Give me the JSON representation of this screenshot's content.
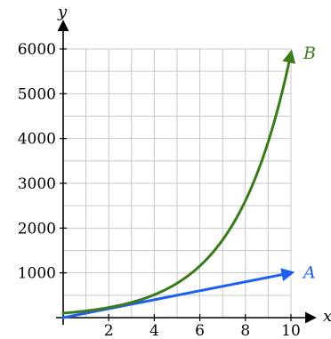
{
  "chart_data": {
    "type": "line",
    "xlabel": "x",
    "ylabel": "y",
    "xlim": [
      0,
      10
    ],
    "ylim": [
      0,
      6000
    ],
    "x_ticks": [
      2,
      4,
      6,
      8,
      10
    ],
    "y_ticks": [
      1000,
      2000,
      3000,
      4000,
      5000,
      6000
    ],
    "x_tick_labels": [
      "2",
      "4",
      "6",
      "8",
      "10"
    ],
    "y_tick_labels": [
      "1000",
      "2000",
      "3000",
      "4000",
      "5000",
      "6000"
    ],
    "grid": true,
    "series": [
      {
        "name": "A",
        "color": "#1f5ff0",
        "kind": "linear",
        "x": [
          0,
          2,
          4,
          6,
          8,
          10
        ],
        "y": [
          0,
          200,
          400,
          600,
          800,
          1000
        ]
      },
      {
        "name": "B",
        "color": "#3a7a1a",
        "kind": "exponential",
        "x": [
          0,
          2,
          4,
          6,
          8,
          10
        ],
        "y": [
          100,
          235,
          555,
          1310,
          3090,
          5900
        ]
      }
    ]
  }
}
